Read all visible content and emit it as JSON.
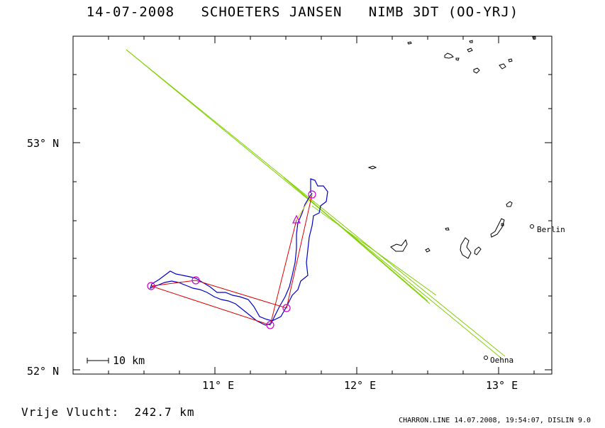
{
  "header": {
    "title": "14-07-2008   SCHOETERS JANSEN   NIMB 3DT (OO-YRJ)"
  },
  "axes": {
    "lat_labels": [
      "53° N",
      "52° N"
    ],
    "lon_labels": [
      "11° E",
      "12° E",
      "13° E"
    ]
  },
  "scale_bar": {
    "label": "10 km"
  },
  "places": [
    {
      "name": "Berlin"
    },
    {
      "name": "Oehna"
    }
  ],
  "distance": {
    "label": "Vrije Vlucht:",
    "value": "242.7 km"
  },
  "footer": {
    "text": "CHARRON.LINE 14.07.2008, 19:54:07, DISLIN 9.0"
  },
  "colors": {
    "track": "#0000cc",
    "task": "#e00000",
    "turnpoint": "#cc00cc",
    "airspace": "#80d000",
    "start_leg": "#e8d000"
  }
}
